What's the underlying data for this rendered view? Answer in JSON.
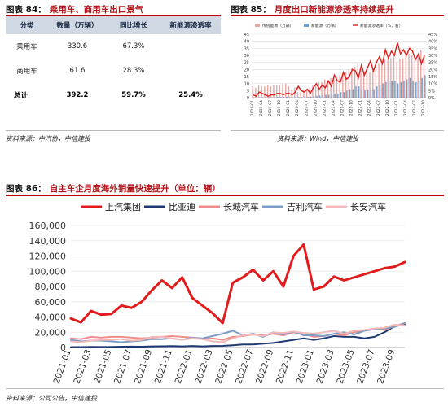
{
  "figure84": {
    "number": "图表 84：",
    "title": "乘用车、商用车出口景气",
    "table": {
      "headers": [
        "分类",
        "数量（万辆）",
        "同比增长",
        "新能源渗透率"
      ],
      "rows": [
        [
          "乘用车",
          "330.6",
          "67.3%",
          ""
        ],
        [
          "商用车",
          "61.6",
          "28.3%",
          ""
        ],
        [
          "总计",
          "392.2",
          "59.7%",
          "25.4%"
        ]
      ]
    },
    "source": "资料来源：中汽协，中信建投"
  },
  "figure85": {
    "number": "图表 85：",
    "title": "月度出口新能源渗透率持续提升",
    "source": "资料来源：Wind，中信建投"
  },
  "figure86": {
    "number": "图表 86：",
    "title": "自主车企月度海外销量快速提升（单位：辆）",
    "source": "资料来源：公司公告，中信建投"
  },
  "chart_data": [
    {
      "id": "figure85",
      "type": "bar",
      "legend": [
        "传统能源（万辆）",
        "新能源（万辆）",
        "新能源渗透率（%，右）"
      ],
      "legend_placement": "top",
      "x": [
        "2019-01",
        "2019-02",
        "2019-03",
        "2019-04",
        "2019-05",
        "2019-06",
        "2019-07",
        "2019-08",
        "2019-09",
        "2019-10",
        "2019-11",
        "2019-12",
        "2020-01",
        "2020-02",
        "2020-03",
        "2020-04",
        "2020-05",
        "2020-06",
        "2020-07",
        "2020-08",
        "2020-09",
        "2020-10",
        "2020-11",
        "2020-12",
        "2021-01",
        "2021-02",
        "2021-03",
        "2021-04",
        "2021-05",
        "2021-06",
        "2021-07",
        "2021-08",
        "2021-09",
        "2021-10",
        "2021-11",
        "2021-12",
        "2022-01",
        "2022-02",
        "2022-03",
        "2022-04",
        "2022-05",
        "2022-06",
        "2022-07",
        "2022-08",
        "2022-09",
        "2022-10",
        "2022-11",
        "2022-12",
        "2023-01",
        "2023-02",
        "2023-03",
        "2023-04",
        "2023-05",
        "2023-06",
        "2023-07",
        "2023-08",
        "2023-09",
        "2023-10"
      ],
      "x_tick_labels": [
        "2019-01",
        "2019-04",
        "2019-07",
        "2019-10",
        "2020-01",
        "2020-04",
        "2020-07",
        "2020-10",
        "2021-01",
        "2021-04",
        "2021-07",
        "2021-10",
        "2022-01",
        "2022-04",
        "2022-07",
        "2022-10",
        "2023-01",
        "2023-04",
        "2023-07",
        "2023-10"
      ],
      "series": [
        {
          "name": "传统能源（万辆）",
          "axis": "left",
          "kind": "bar",
          "color": "#e8a7a7",
          "values": [
            8,
            7,
            9,
            8,
            8,
            9,
            8,
            9,
            9,
            9,
            10,
            10,
            8,
            6,
            7,
            4,
            4,
            5,
            6,
            7,
            9,
            10,
            11,
            11,
            13,
            12,
            14,
            15,
            15,
            16,
            17,
            18,
            20,
            21,
            22,
            24,
            20,
            17,
            19,
            18,
            20,
            22,
            24,
            26,
            27,
            28,
            28,
            30,
            25,
            27,
            28,
            30,
            31,
            30,
            30,
            31,
            34,
            29
          ]
        },
        {
          "name": "新能源（万辆）",
          "axis": "left",
          "kind": "bar",
          "color": "#6f9fc6",
          "values": [
            0.3,
            0.3,
            0.3,
            0.3,
            0.4,
            0.4,
            0.4,
            0.5,
            0.5,
            0.5,
            0.5,
            0.6,
            0.4,
            0.3,
            0.5,
            0.4,
            0.4,
            0.5,
            0.6,
            0.8,
            1,
            1.3,
            1.5,
            1.7,
            2,
            2,
            3,
            3,
            3,
            4,
            4,
            5,
            6,
            6,
            8,
            8,
            6,
            5,
            6,
            5,
            6,
            8,
            9,
            10,
            11,
            12,
            12,
            12,
            10,
            11,
            12,
            13,
            14,
            12,
            11,
            12,
            14,
            16
          ]
        },
        {
          "name": "新能源渗透率（%，右）",
          "axis": "right",
          "kind": "line",
          "color": "#e11b1b",
          "values": [
            2,
            1,
            4,
            3,
            2,
            1,
            2,
            2,
            3,
            3,
            2,
            3,
            3,
            2,
            4,
            8,
            5,
            4,
            6,
            3,
            7,
            10,
            6,
            9,
            7,
            12,
            8,
            16,
            12,
            11,
            18,
            13,
            15,
            20,
            19,
            14,
            23,
            16,
            21,
            26,
            19,
            25,
            29,
            24,
            34,
            28,
            33,
            30,
            39,
            31,
            34,
            30,
            35,
            33,
            27,
            31,
            24,
            30
          ]
        }
      ],
      "ylim_left": [
        0,
        45
      ],
      "yticks_left": [
        0,
        5,
        10,
        15,
        20,
        25,
        30,
        35,
        40,
        45
      ],
      "ylim_right": [
        0,
        45
      ],
      "yticks_right": [
        "0%",
        "5%",
        "10%",
        "15%",
        "20%",
        "25%",
        "30%",
        "35%",
        "40%",
        "45%"
      ],
      "grid": true
    },
    {
      "id": "figure86",
      "type": "line",
      "legend_placement": "top",
      "x": [
        "2021-01",
        "2021-02",
        "2021-03",
        "2021-04",
        "2021-05",
        "2021-06",
        "2021-07",
        "2021-08",
        "2021-09",
        "2021-10",
        "2021-11",
        "2021-12",
        "2022-01",
        "2022-02",
        "2022-03",
        "2022-04",
        "2022-05",
        "2022-06",
        "2022-07",
        "2022-08",
        "2022-09",
        "2022-10",
        "2022-11",
        "2022-12",
        "2023-01",
        "2023-02",
        "2023-03",
        "2023-04",
        "2023-05",
        "2023-06",
        "2023-07",
        "2023-08",
        "2023-09",
        "2023-10"
      ],
      "x_tick_labels": [
        "2021-01",
        "2021-03",
        "2021-05",
        "2021-07",
        "2021-09",
        "2021-11",
        "2022-01",
        "2022-03",
        "2022-05",
        "2022-07",
        "2022-09",
        "2022-11",
        "2023-01",
        "2023-03",
        "2023-05",
        "2023-07",
        "2023-09"
      ],
      "ylim": [
        0,
        160000
      ],
      "yticks": [
        "0",
        "20,000",
        "40,000",
        "60,000",
        "80,000",
        "100,000",
        "120,000",
        "140,000",
        "160,000"
      ],
      "grid": true,
      "series": [
        {
          "name": "上汽集团",
          "color": "#e11b1b",
          "width": 3,
          "values": [
            38000,
            33000,
            48000,
            43000,
            44000,
            55000,
            52000,
            60000,
            75000,
            88000,
            78000,
            92000,
            65000,
            55000,
            45000,
            32000,
            85000,
            92000,
            102000,
            88000,
            100000,
            80000,
            120000,
            135000,
            76000,
            80000,
            93000,
            88000,
            92000,
            96000,
            100000,
            104000,
            106000,
            112000
          ]
        },
        {
          "name": "比亚迪",
          "color": "#1f3a73",
          "width": 2,
          "values": [
            500,
            600,
            800,
            700,
            800,
            1000,
            1200,
            1000,
            1500,
            1600,
            1800,
            1500,
            2000,
            1500,
            2000,
            2200,
            3000,
            4000,
            4000,
            5000,
            6000,
            8000,
            10000,
            12000,
            10000,
            12000,
            15000,
            14000,
            14000,
            12000,
            14000,
            20000,
            28000,
            30000
          ]
        },
        {
          "name": "长城汽车",
          "color": "#f08c8c",
          "width": 2,
          "values": [
            12000,
            11000,
            14000,
            13000,
            14000,
            14000,
            13000,
            12000,
            13000,
            14000,
            15000,
            14000,
            13000,
            11000,
            12000,
            10000,
            14000,
            15000,
            17000,
            16000,
            18000,
            16000,
            20000,
            18000,
            14000,
            15000,
            18000,
            16000,
            20000,
            22000,
            24000,
            23000,
            28000,
            32000
          ]
        },
        {
          "name": "吉利汽车",
          "color": "#7a9cc6",
          "width": 2,
          "values": [
            10000,
            8000,
            9000,
            9000,
            8000,
            7000,
            8000,
            9000,
            11000,
            11000,
            12000,
            10000,
            13000,
            12000,
            15000,
            18000,
            22000,
            16000,
            18000,
            14000,
            20000,
            17000,
            21000,
            16000,
            16000,
            15000,
            18000,
            20000,
            17000,
            22000,
            24000,
            25000,
            27000,
            32000
          ]
        },
        {
          "name": "长安汽车",
          "color": "#f4b9b9",
          "width": 2,
          "values": [
            8000,
            7000,
            9000,
            10000,
            10000,
            11000,
            9000,
            10000,
            14000,
            14000,
            12000,
            10000,
            12000,
            11000,
            8000,
            7000,
            12000,
            16000,
            17000,
            15000,
            20000,
            19000,
            21000,
            19000,
            18000,
            20000,
            22000,
            18000,
            22000,
            23000,
            25000,
            26000,
            30000,
            29000
          ]
        }
      ]
    }
  ]
}
